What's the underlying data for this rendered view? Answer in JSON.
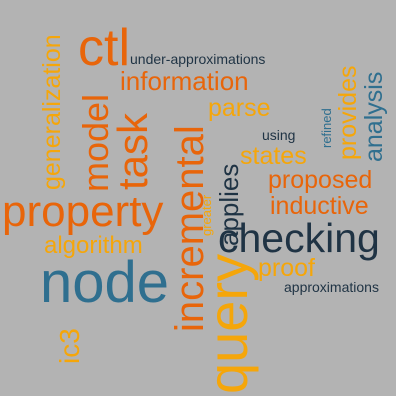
{
  "words": [
    {
      "text": "ctl",
      "color": "#e8650a"
    },
    {
      "text": "under-approximations",
      "color": "#1f3344"
    },
    {
      "text": "information",
      "color": "#e8650a"
    },
    {
      "text": "parse",
      "color": "#f5a60a"
    },
    {
      "text": "using",
      "color": "#1f3344"
    },
    {
      "text": "refined",
      "color": "#2f6f8f"
    },
    {
      "text": "provides",
      "color": "#f5a60a"
    },
    {
      "text": "analysis",
      "color": "#2f6f8f"
    },
    {
      "text": "states",
      "color": "#f5a60a"
    },
    {
      "text": "proposed",
      "color": "#e8650a"
    },
    {
      "text": "inductive",
      "color": "#e8650a"
    },
    {
      "text": "applies",
      "color": "#1f3344"
    },
    {
      "text": "greater",
      "color": "#f5a60a"
    },
    {
      "text": "checking",
      "color": "#1f3344"
    },
    {
      "text": "proof",
      "color": "#f5a60a"
    },
    {
      "text": "approximations",
      "color": "#1f3344"
    },
    {
      "text": "generalization",
      "color": "#f5a60a"
    },
    {
      "text": "model",
      "color": "#e8650a"
    },
    {
      "text": "task",
      "color": "#e8650a"
    },
    {
      "text": "incremental",
      "color": "#e8650a"
    },
    {
      "text": "property",
      "color": "#e8650a"
    },
    {
      "text": "algorithm",
      "color": "#f5a60a"
    },
    {
      "text": "node",
      "color": "#2f6f8f"
    },
    {
      "text": "ic3",
      "color": "#f5a60a"
    },
    {
      "text": "query",
      "color": "#f5a60a"
    }
  ]
}
